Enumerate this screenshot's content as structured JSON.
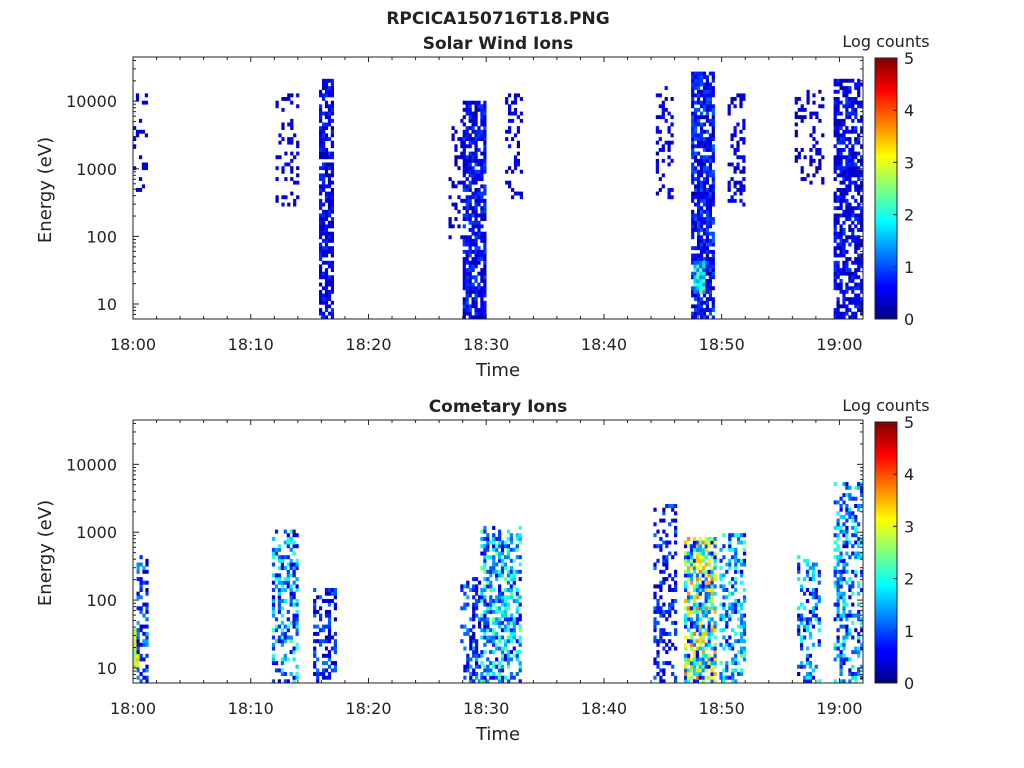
{
  "figure": {
    "title": "RPCICA150716T18.PNG"
  },
  "chart_data": [
    {
      "type": "heatmap",
      "title": "Solar Wind Ions",
      "xlabel": "Time",
      "ylabel": "Energy (eV)",
      "x_ticks": [
        "18:00",
        "18:10",
        "18:20",
        "18:30",
        "18:40",
        "18:50",
        "19:00"
      ],
      "x_range_minutes": [
        0,
        62
      ],
      "y_scale": "log",
      "y_ticks": [
        10,
        100,
        1000,
        10000
      ],
      "y_tick_labels": [
        "10",
        "100",
        "1000",
        "10000"
      ],
      "y_range": [
        6,
        45000
      ],
      "colorbar": {
        "title": "Log counts",
        "range": [
          0,
          5
        ],
        "ticks": [
          "0",
          "1",
          "2",
          "3",
          "4",
          "5"
        ]
      },
      "bursts": [
        {
          "t_start": 0.0,
          "t_end": 1.1,
          "e_min": 500,
          "e_max": 13000,
          "density": 0.22,
          "logc": [
            0.2,
            0.6
          ]
        },
        {
          "t_start": 12.1,
          "t_end": 14.0,
          "e_min": 300,
          "e_max": 15000,
          "density": 0.25,
          "logc": [
            0.2,
            0.7
          ]
        },
        {
          "t_start": 15.8,
          "t_end": 17.0,
          "e_min": 6,
          "e_max": 20000,
          "density": 0.7,
          "logc": [
            0.2,
            0.9
          ]
        },
        {
          "t_start": 26.8,
          "t_end": 28.0,
          "e_min": 100,
          "e_max": 5000,
          "density": 0.2,
          "logc": [
            0.2,
            0.6
          ]
        },
        {
          "t_start": 28.0,
          "t_end": 30.0,
          "e_min": 6,
          "e_max": 10000,
          "density": 0.75,
          "logc": [
            0.2,
            1.0
          ]
        },
        {
          "t_start": 31.6,
          "t_end": 33.1,
          "e_min": 400,
          "e_max": 12000,
          "density": 0.3,
          "logc": [
            0.2,
            0.7
          ]
        },
        {
          "t_start": 44.4,
          "t_end": 45.9,
          "e_min": 400,
          "e_max": 16000,
          "density": 0.3,
          "logc": [
            0.2,
            0.7
          ]
        },
        {
          "t_start": 47.4,
          "t_end": 49.2,
          "e_min": 6,
          "e_max": 27000,
          "density": 0.8,
          "logc": [
            0.2,
            1.1
          ]
        },
        {
          "t_start": 47.6,
          "t_end": 48.5,
          "e_min": 15,
          "e_max": 40,
          "density": 1.0,
          "logc": [
            1.0,
            2.5
          ]
        },
        {
          "t_start": 50.5,
          "t_end": 52.0,
          "e_min": 300,
          "e_max": 12000,
          "density": 0.3,
          "logc": [
            0.2,
            0.7
          ]
        },
        {
          "t_start": 56.2,
          "t_end": 58.6,
          "e_min": 600,
          "e_max": 14000,
          "density": 0.25,
          "logc": [
            0.2,
            0.6
          ]
        },
        {
          "t_start": 59.5,
          "t_end": 61.8,
          "e_min": 6,
          "e_max": 20000,
          "density": 0.65,
          "logc": [
            0.2,
            0.9
          ]
        }
      ]
    },
    {
      "type": "heatmap",
      "title": "Cometary Ions",
      "xlabel": "Time",
      "ylabel": "Energy (eV)",
      "x_ticks": [
        "18:00",
        "18:10",
        "18:20",
        "18:30",
        "18:40",
        "18:50",
        "19:00"
      ],
      "x_range_minutes": [
        0,
        62
      ],
      "y_scale": "log",
      "y_ticks": [
        10,
        100,
        1000,
        10000
      ],
      "y_tick_labels": [
        "10",
        "100",
        "1000",
        "10000"
      ],
      "y_range": [
        6,
        45000
      ],
      "colorbar": {
        "title": "Log counts",
        "range": [
          0,
          5
        ],
        "ticks": [
          "0",
          "1",
          "2",
          "3",
          "4",
          "5"
        ]
      },
      "bursts": [
        {
          "t_start": 0.0,
          "t_end": 0.5,
          "e_min": 10,
          "e_max": 35,
          "density": 1.0,
          "logc": [
            2.5,
            3.5
          ]
        },
        {
          "t_start": 0.3,
          "t_end": 1.1,
          "e_min": 6,
          "e_max": 450,
          "density": 0.4,
          "logc": [
            0.2,
            1.5
          ]
        },
        {
          "t_start": 11.8,
          "t_end": 13.9,
          "e_min": 6,
          "e_max": 1000,
          "density": 0.45,
          "logc": [
            0.3,
            2.2
          ]
        },
        {
          "t_start": 15.3,
          "t_end": 17.2,
          "e_min": 6,
          "e_max": 150,
          "density": 0.4,
          "logc": [
            0.2,
            1.2
          ]
        },
        {
          "t_start": 27.8,
          "t_end": 29.5,
          "e_min": 6,
          "e_max": 200,
          "density": 0.35,
          "logc": [
            0.2,
            1.5
          ]
        },
        {
          "t_start": 29.5,
          "t_end": 32.9,
          "e_min": 6,
          "e_max": 1200,
          "density": 0.55,
          "logc": [
            0.5,
            2.5
          ]
        },
        {
          "t_start": 44.2,
          "t_end": 46.0,
          "e_min": 6,
          "e_max": 2500,
          "density": 0.35,
          "logc": [
            0.2,
            1.2
          ]
        },
        {
          "t_start": 46.8,
          "t_end": 49.4,
          "e_min": 6,
          "e_max": 800,
          "density": 0.7,
          "logc": [
            0.5,
            3.8
          ]
        },
        {
          "t_start": 49.8,
          "t_end": 52.0,
          "e_min": 6,
          "e_max": 900,
          "density": 0.45,
          "logc": [
            0.5,
            2.3
          ]
        },
        {
          "t_start": 56.4,
          "t_end": 58.4,
          "e_min": 6,
          "e_max": 500,
          "density": 0.35,
          "logc": [
            0.3,
            2.0
          ]
        },
        {
          "t_start": 59.5,
          "t_end": 61.8,
          "e_min": 6,
          "e_max": 5000,
          "density": 0.4,
          "logc": [
            0.3,
            2.2
          ]
        }
      ]
    }
  ]
}
